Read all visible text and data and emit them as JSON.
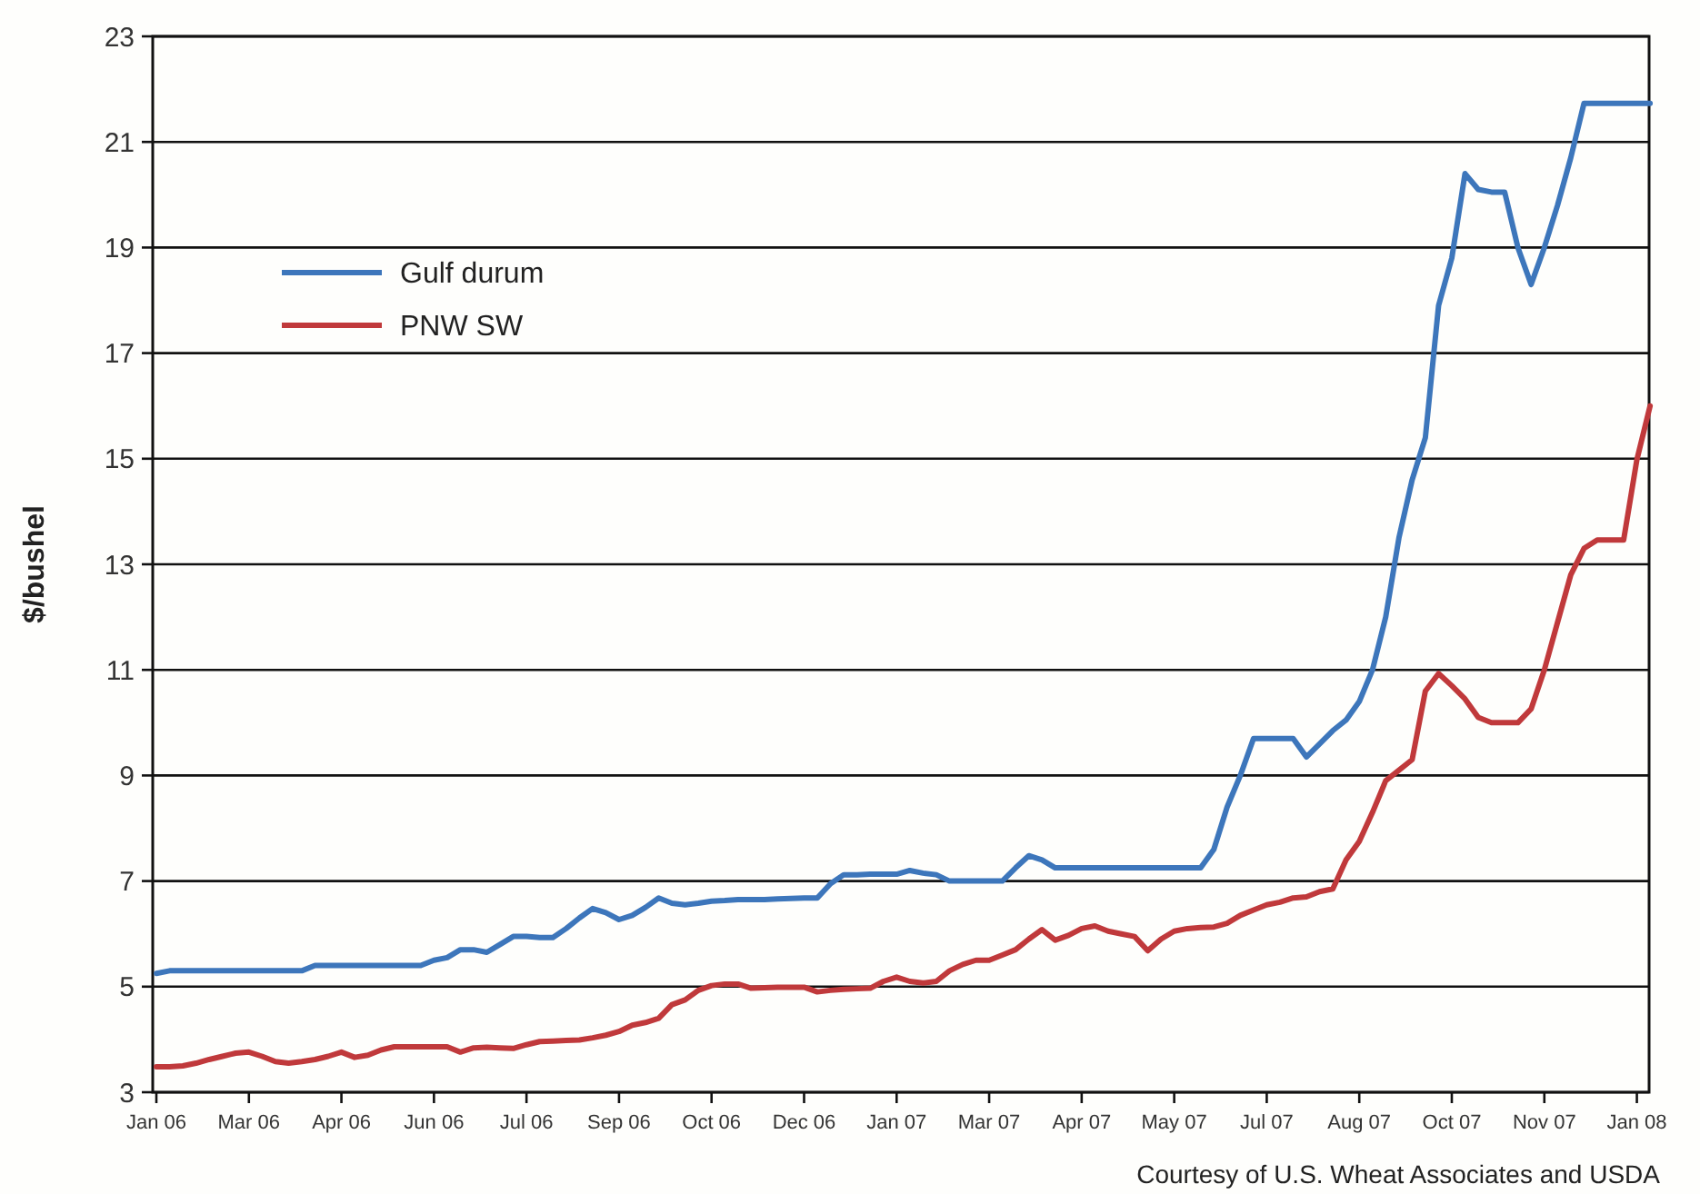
{
  "chart_data": {
    "type": "line",
    "ylabel": "$/bushel",
    "annotations": [
      "Courtesy of U.S. Wheat Associates and USDA"
    ],
    "categories": [
      "Jan 06",
      null,
      null,
      null,
      null,
      null,
      null,
      "Mar 06",
      null,
      null,
      null,
      null,
      null,
      null,
      "Apr 06",
      null,
      null,
      null,
      null,
      null,
      null,
      "Jun 06",
      null,
      null,
      null,
      null,
      null,
      null,
      "Jul 06",
      null,
      null,
      null,
      null,
      null,
      null,
      "Sep 06",
      null,
      null,
      null,
      null,
      null,
      null,
      "Oct 06",
      null,
      null,
      null,
      null,
      null,
      null,
      "Dec 06",
      null,
      null,
      null,
      null,
      null,
      null,
      "Jan 07",
      null,
      null,
      null,
      null,
      null,
      null,
      "Mar 07",
      null,
      null,
      null,
      null,
      null,
      null,
      "Apr 07",
      null,
      null,
      null,
      null,
      null,
      null,
      "May 07",
      null,
      null,
      null,
      null,
      null,
      null,
      "Jul 07",
      null,
      null,
      null,
      null,
      null,
      null,
      "Aug 07",
      null,
      null,
      null,
      null,
      null,
      null,
      "Oct 07",
      null,
      null,
      null,
      null,
      null,
      null,
      "Nov 07",
      null,
      null,
      null,
      null,
      null,
      null,
      "Jan 08",
      null
    ],
    "series": [
      {
        "name": "Gulf durum",
        "color": "#3d76bb",
        "values": [
          5.25,
          5.3,
          5.3,
          5.3,
          5.3,
          5.3,
          5.3,
          5.3,
          5.3,
          5.3,
          5.3,
          5.3,
          5.4,
          5.4,
          5.4,
          5.4,
          5.4,
          5.4,
          5.4,
          5.4,
          5.4,
          5.5,
          5.55,
          5.7,
          5.7,
          5.65,
          5.8,
          5.95,
          5.95,
          5.93,
          5.93,
          6.1,
          6.3,
          6.48,
          6.4,
          6.27,
          6.35,
          6.5,
          6.68,
          6.58,
          6.55,
          6.58,
          6.62,
          6.63,
          6.65,
          6.65,
          6.65,
          6.66,
          6.67,
          6.68,
          6.68,
          6.95,
          7.12,
          7.12,
          7.13,
          7.13,
          7.13,
          7.2,
          7.15,
          7.12,
          7.0,
          7.0,
          7.0,
          7.0,
          7.0,
          7.25,
          7.48,
          7.4,
          7.25,
          7.25,
          7.25,
          7.25,
          7.25,
          7.25,
          7.25,
          7.25,
          7.25,
          7.25,
          7.25,
          7.25,
          7.6,
          8.4,
          9.0,
          9.7,
          9.7,
          9.7,
          9.7,
          9.35,
          9.6,
          9.85,
          10.05,
          10.4,
          11.0,
          12.0,
          13.5,
          14.6,
          15.4,
          17.9,
          18.8,
          20.4,
          20.1,
          20.05,
          20.05,
          19.0,
          18.3,
          19.0,
          19.8,
          20.7,
          21.73,
          21.73,
          21.73,
          21.73,
          21.73,
          21.73
        ]
      },
      {
        "name": "PNW SW",
        "color": "#c0393b",
        "values": [
          3.48,
          3.48,
          3.5,
          3.55,
          3.62,
          3.68,
          3.74,
          3.76,
          3.68,
          3.58,
          3.55,
          3.58,
          3.62,
          3.68,
          3.76,
          3.66,
          3.7,
          3.8,
          3.86,
          3.86,
          3.86,
          3.86,
          3.86,
          3.76,
          3.84,
          3.85,
          3.84,
          3.83,
          3.9,
          3.96,
          3.97,
          3.98,
          3.99,
          4.03,
          4.08,
          4.15,
          4.27,
          4.32,
          4.4,
          4.66,
          4.75,
          4.93,
          5.02,
          5.05,
          5.05,
          4.97,
          4.98,
          4.99,
          4.99,
          4.99,
          4.9,
          4.93,
          4.95,
          4.96,
          4.97,
          5.1,
          5.18,
          5.1,
          5.07,
          5.1,
          5.3,
          5.42,
          5.5,
          5.5,
          5.6,
          5.7,
          5.9,
          6.08,
          5.88,
          5.97,
          6.1,
          6.15,
          6.05,
          6.0,
          5.95,
          5.68,
          5.9,
          6.05,
          6.1,
          6.12,
          6.13,
          6.2,
          6.35,
          6.45,
          6.55,
          6.6,
          6.68,
          6.7,
          6.8,
          6.85,
          7.4,
          7.75,
          8.3,
          8.9,
          9.1,
          9.3,
          10.6,
          10.93,
          10.7,
          10.45,
          10.1,
          10.0,
          10.0,
          10.0,
          10.26,
          11.0,
          11.9,
          12.8,
          13.3,
          13.46,
          13.46,
          13.46,
          14.98,
          16.0
        ]
      }
    ],
    "ylim": [
      3,
      23
    ],
    "yticks": [
      3,
      5,
      7,
      9,
      11,
      13,
      15,
      17,
      19,
      21,
      23
    ],
    "grid": "y",
    "legend": "top left",
    "marker": "none",
    "line_style": "solid"
  }
}
